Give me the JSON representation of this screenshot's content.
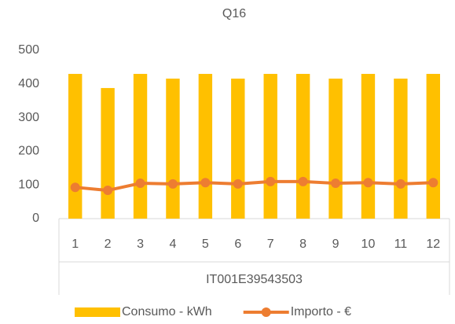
{
  "chart_data": {
    "type": "combo",
    "title": "Q16",
    "categories": [
      "1",
      "2",
      "3",
      "4",
      "5",
      "6",
      "7",
      "8",
      "9",
      "10",
      "11",
      "12"
    ],
    "category_group": "IT001E39543503",
    "series": [
      {
        "name": "Consumo - kWh",
        "type": "bar",
        "color": "#ffc000",
        "values": [
          430,
          388,
          430,
          416,
          430,
          416,
          430,
          430,
          416,
          430,
          416,
          430
        ]
      },
      {
        "name": "Importo - €",
        "type": "line",
        "color": "#ed7d31",
        "values": [
          93,
          84,
          105,
          103,
          107,
          103,
          110,
          110,
          105,
          107,
          103,
          107
        ]
      }
    ],
    "ylim": [
      0,
      500
    ],
    "yticks": [
      0,
      100,
      200,
      300,
      400,
      500
    ],
    "grid": false,
    "legend": "bottom"
  }
}
